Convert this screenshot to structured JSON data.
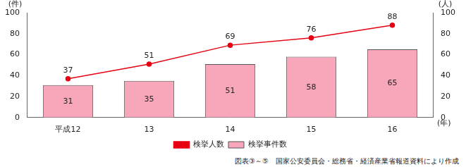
{
  "chart_data": {
    "type": "bar",
    "categories": [
      "平成12",
      "13",
      "14",
      "15",
      "16"
    ],
    "series": [
      {
        "name": "検挙事件数",
        "type": "bar",
        "color": "#f7a7b9",
        "values": [
          31,
          35,
          51,
          58,
          65
        ]
      },
      {
        "name": "検挙人数",
        "type": "line",
        "color": "#e60012",
        "marker": "circle",
        "axis": "y2",
        "values": [
          37,
          51,
          69,
          76,
          88
        ]
      }
    ],
    "x_label": "(年)",
    "y_label": "(件)",
    "y2_label": "(人)",
    "ylim": [
      0,
      100
    ],
    "yticks": [
      0,
      20,
      40,
      60,
      80,
      100
    ],
    "y2lim": [
      0,
      100
    ],
    "y2ticks": [
      0,
      20,
      40,
      60,
      80,
      100
    ],
    "grid": false,
    "legend": "bottom",
    "data_labels": true,
    "annotations": [
      "図表③～⑤　国家公安委員会・総務省・経済産業省報道資料により作成"
    ]
  }
}
